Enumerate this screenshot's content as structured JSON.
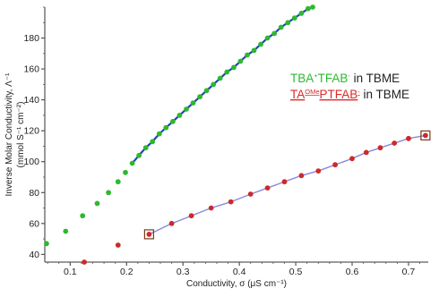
{
  "chart_data": {
    "type": "scatter",
    "title": "",
    "xlabel": "Conductivity, σ (μS cm⁻¹)",
    "ylabel": {
      "line1": "Inverse Molar Conductivity, Λ⁻¹",
      "line2": "(mmol S⁻¹ cm⁻²)"
    },
    "xlim": [
      0.055,
      0.735
    ],
    "ylim": [
      35,
      200
    ],
    "xticks": [
      0.1,
      0.2,
      0.3,
      0.4,
      0.5,
      0.6,
      0.7
    ],
    "yticks": [
      40,
      60,
      80,
      100,
      120,
      140,
      160,
      180
    ],
    "grid": false,
    "legend_position": "right",
    "legend": [
      {
        "name": "TBA⁺TFAB⁻ in TBME",
        "parts": {
          "main": "TBA",
          "sup1": "+",
          "mid": "TFAB",
          "sup2": "-",
          "tail": " in TBME"
        },
        "color": "#2db92d",
        "underline": false
      },
      {
        "name": "TA^OMePTFAB⁻ in TBME",
        "parts": {
          "main": "TA",
          "sup1": "OMe",
          "mid": "PTFAB",
          "sup2": "-",
          "tail": " in TBME"
        },
        "color": "#e02828",
        "underline": true
      }
    ],
    "series": [
      {
        "name": "TBA⁺TFAB⁻ in TBME",
        "color": "#2db92d",
        "fit_color": "#2244bb",
        "fit_range": [
          0.21,
          0.53
        ],
        "x": [
          0.058,
          0.092,
          0.122,
          0.148,
          0.168,
          0.185,
          0.198,
          0.21,
          0.222,
          0.234,
          0.246,
          0.258,
          0.27,
          0.282,
          0.294,
          0.306,
          0.318,
          0.33,
          0.342,
          0.354,
          0.366,
          0.378,
          0.39,
          0.402,
          0.414,
          0.426,
          0.438,
          0.45,
          0.462,
          0.474,
          0.486,
          0.498,
          0.51,
          0.522,
          0.53
        ],
        "y": [
          47,
          55,
          65,
          73,
          80,
          87,
          93,
          99,
          104,
          109,
          113,
          118,
          122,
          126,
          130,
          134,
          138,
          142,
          146,
          150,
          154,
          158,
          161,
          165,
          169,
          172,
          176,
          180,
          183,
          187,
          190,
          193,
          196,
          199,
          200
        ]
      },
      {
        "name": "TA^OMePTFAB⁻ in TBME",
        "color": "#cc2a2a",
        "fit_color": "#8888dd",
        "fit_range": [
          0.24,
          0.73
        ],
        "x": [
          0.125,
          0.185,
          0.24,
          0.28,
          0.315,
          0.35,
          0.385,
          0.42,
          0.45,
          0.48,
          0.51,
          0.54,
          0.57,
          0.6,
          0.625,
          0.65,
          0.675,
          0.7,
          0.73
        ],
        "y": [
          35,
          46,
          53,
          60,
          65,
          70,
          74,
          79,
          83,
          87,
          91,
          94,
          98,
          102,
          106,
          109,
          112,
          115,
          117
        ],
        "boxed_points": [
          0.24,
          0.73
        ]
      }
    ]
  }
}
